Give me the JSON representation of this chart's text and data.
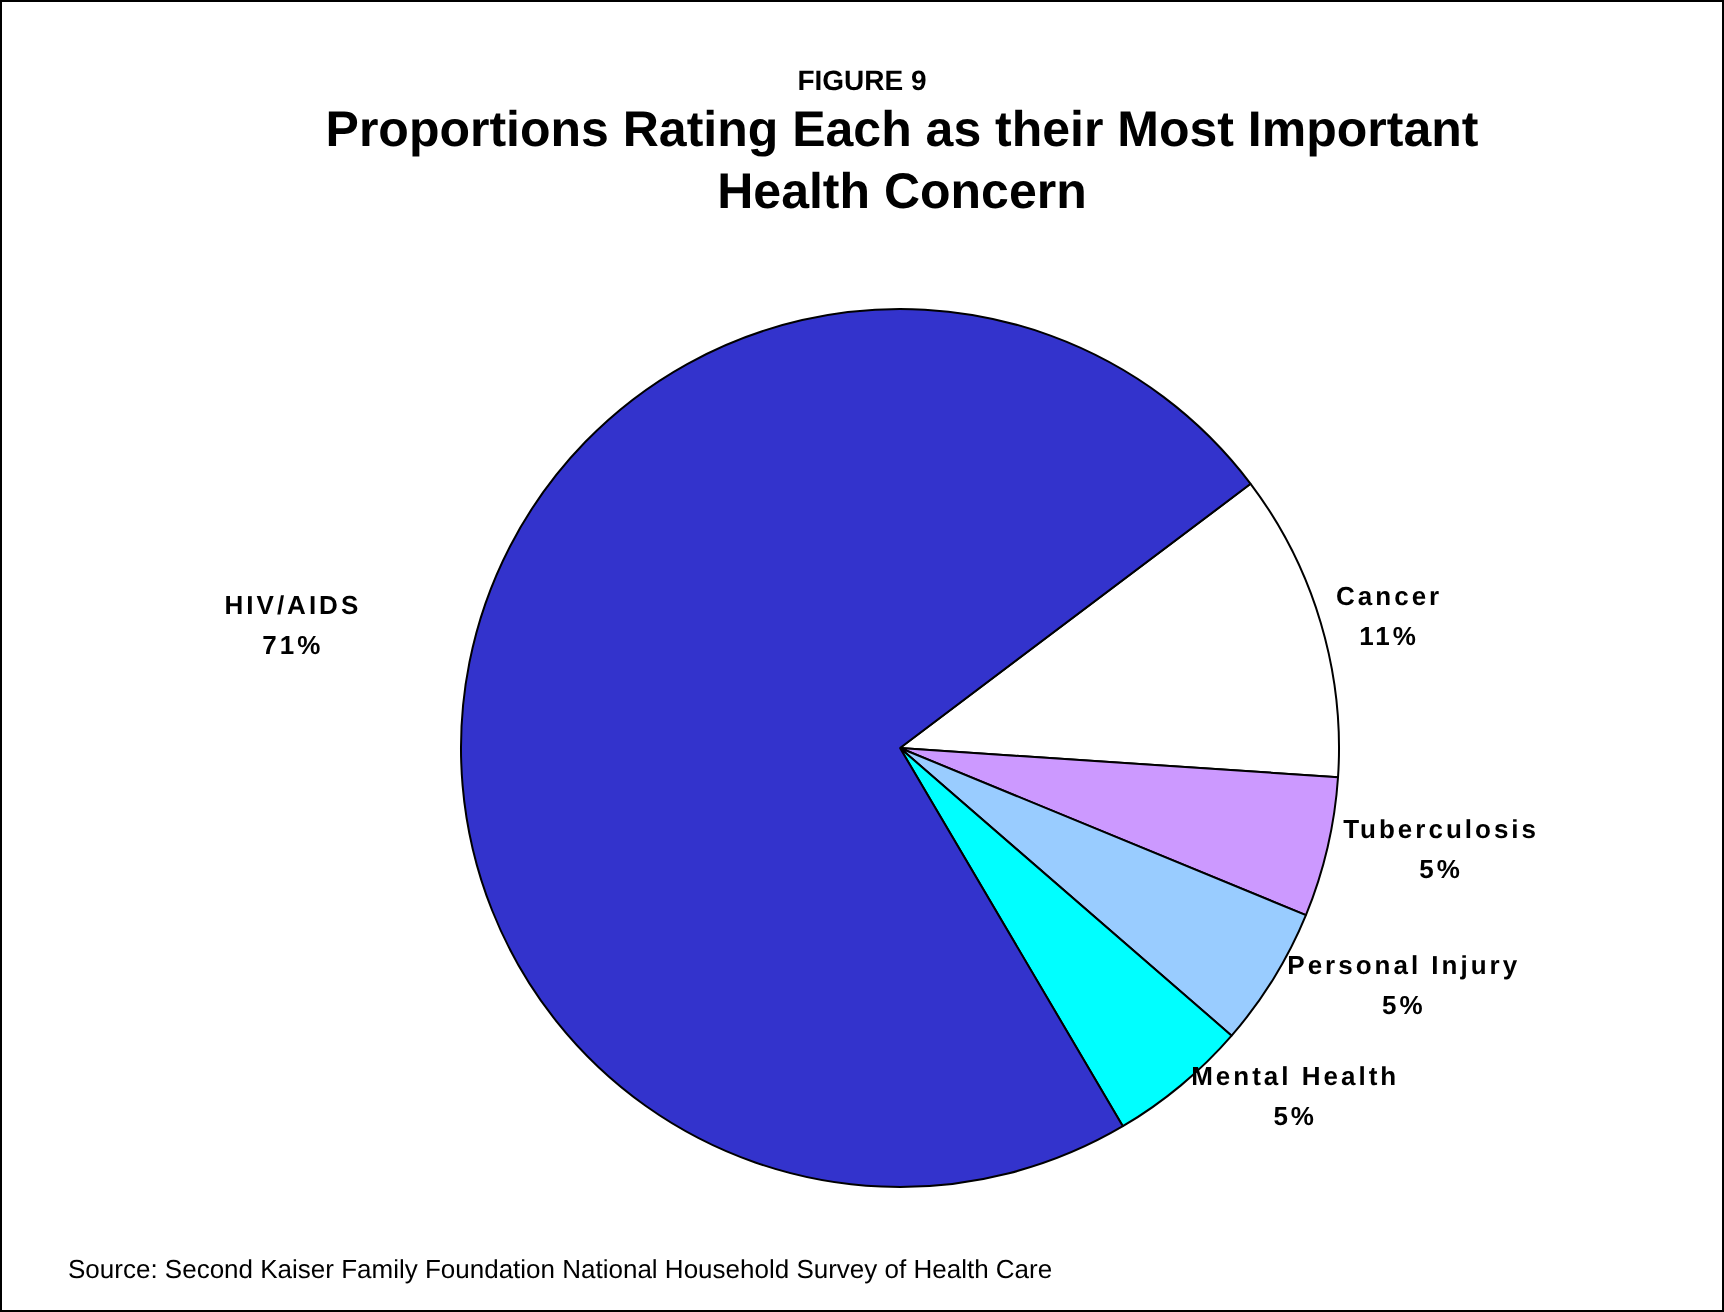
{
  "chart_data": {
    "type": "pie",
    "title": "FIGURE 9",
    "subtitle": "Proportions Rating Each as their Most Important Health Concern",
    "categories": [
      "Cancer",
      "Tuberculosis",
      "Personal Injury",
      "Mental Health",
      "HIV/AIDS"
    ],
    "values": [
      11,
      5,
      5,
      5,
      71
    ],
    "colors": [
      "#ffffff",
      "#cc99ff",
      "#99ccff",
      "#00ffff",
      "#3333cc"
    ],
    "value_labels": [
      "11%",
      "5%",
      "5%",
      "5%",
      "71%"
    ],
    "legend": false,
    "annotations": [
      "Source:  Second Kaiser Family Foundation National Household Survey of Health Care"
    ]
  }
}
